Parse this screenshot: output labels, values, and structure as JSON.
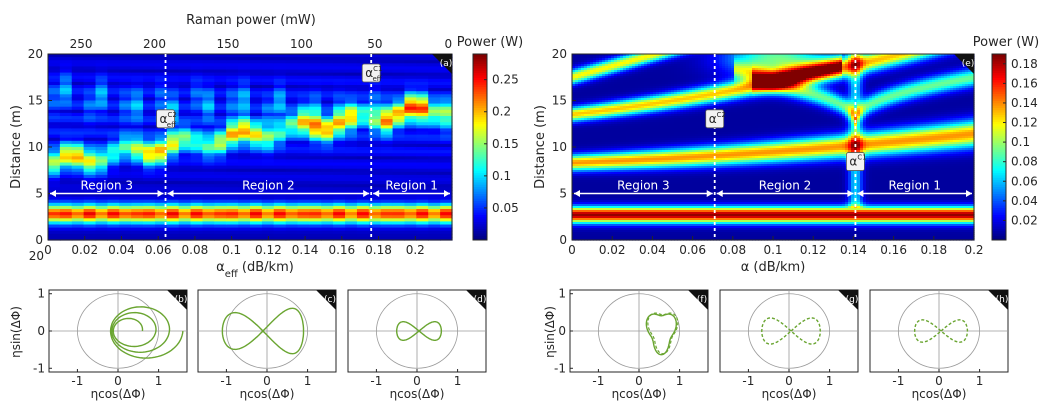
{
  "colors": {
    "axis": "#262626",
    "annot": "#ffffff",
    "polar_line": "#6aa531",
    "grid": "#9a9a9a"
  },
  "left_heatmap": {
    "top_axis_label": "Raman power (mW)",
    "top_ticks": [
      "250",
      "200",
      "150",
      "100",
      "50",
      "0"
    ],
    "ylabel": "Distance (m)",
    "xlabel_main": "α",
    "xlabel_sub": "eff",
    "xlabel_units": " (dB/km)",
    "colorbar_title": "Power (W)",
    "colorbar_ticks": [
      "0.25",
      "0.2",
      "0.15",
      "0.1",
      "0.05"
    ],
    "panel_label": "(a)",
    "critical_labels": [
      {
        "main": "α",
        "sup": "C2",
        "sub": "eff"
      },
      {
        "main": "α",
        "sup": "C1",
        "sub": "eff"
      }
    ],
    "region_labels": [
      "Region 3",
      "Region 2",
      "Region 1"
    ]
  },
  "right_heatmap": {
    "ylabel": "Distance (m)",
    "xlabel": "α (dB/km)",
    "colorbar_title": "Power (W)",
    "colorbar_ticks": [
      "0.18",
      "0.16",
      "0.14",
      "0.12",
      "0.1",
      "0.08",
      "0.06",
      "0.04",
      "0.02"
    ],
    "panel_label": "(e)",
    "critical_labels": [
      {
        "main": "α",
        "sup": "C2"
      },
      {
        "main": "α",
        "sup": "C1"
      }
    ],
    "region_labels": [
      "Region 3",
      "Region 2",
      "Region 1"
    ]
  },
  "polar_plots": {
    "ylabel": "ηsin(ΔΦ)",
    "xlabel": "ηcos(ΔΦ)",
    "xticks": [
      "-1",
      "0",
      "1"
    ],
    "yticks": [
      "1",
      "0",
      "-1"
    ],
    "panels": [
      "(b)",
      "(c)",
      "(d)",
      "(f)",
      "(g)",
      "(h)"
    ]
  },
  "chart_data": [
    {
      "type": "heatmap",
      "title": "",
      "xlabel": "αeff (dB/km)",
      "ylabel": "Distance (m)",
      "top_xlabel": "Raman power (mW)",
      "xlim": [
        0,
        0.22
      ],
      "ylim": [
        0,
        20
      ],
      "xticks": [
        0,
        0.02,
        0.04,
        0.06,
        0.08,
        0.1,
        0.12,
        0.14,
        0.16,
        0.18,
        0.2
      ],
      "yticks": [
        0,
        5,
        10,
        15,
        20
      ],
      "top_xticks": [
        250,
        200,
        150,
        100,
        50,
        0
      ],
      "colorbar_label": "Power (W)",
      "colorbar_range": [
        0,
        0.29
      ],
      "colormap": "jet",
      "critical_x": [
        0.064,
        0.176
      ],
      "regions": [
        {
          "name": "Region 3",
          "x": [
            0,
            0.064
          ]
        },
        {
          "name": "Region 2",
          "x": [
            0.064,
            0.176
          ]
        },
        {
          "name": "Region 1",
          "x": [
            0.176,
            0.22
          ]
        }
      ]
    },
    {
      "type": "heatmap",
      "title": "",
      "xlabel": "α (dB/km)",
      "ylabel": "Distance (m)",
      "xlim": [
        0,
        0.2
      ],
      "ylim": [
        0,
        20
      ],
      "xticks": [
        0,
        0.02,
        0.04,
        0.06,
        0.08,
        0.1,
        0.12,
        0.14,
        0.16,
        0.18,
        0.2
      ],
      "yticks": [
        0,
        5,
        10,
        15,
        20
      ],
      "colorbar_label": "Power (W)",
      "colorbar_range": [
        0,
        0.19
      ],
      "colormap": "jet",
      "critical_x": [
        0.071,
        0.141
      ],
      "regions": [
        {
          "name": "Region 3",
          "x": [
            0,
            0.071
          ]
        },
        {
          "name": "Region 2",
          "x": [
            0.071,
            0.141
          ]
        },
        {
          "name": "Region 1",
          "x": [
            0.141,
            0.2
          ]
        }
      ]
    },
    {
      "type": "scatter",
      "panel": "(b)",
      "xlim": [
        -1.7,
        1.7
      ],
      "ylim": [
        -1.1,
        1.1
      ],
      "style": "solid"
    },
    {
      "type": "scatter",
      "panel": "(c)",
      "xlim": [
        -1.7,
        1.7
      ],
      "ylim": [
        -1.1,
        1.1
      ],
      "style": "solid"
    },
    {
      "type": "scatter",
      "panel": "(d)",
      "xlim": [
        -1.7,
        1.7
      ],
      "ylim": [
        -1.1,
        1.1
      ],
      "style": "solid"
    },
    {
      "type": "scatter",
      "panel": "(f)",
      "xlim": [
        -1.7,
        1.7
      ],
      "ylim": [
        -1.1,
        1.1
      ],
      "style": "solid+dashed"
    },
    {
      "type": "scatter",
      "panel": "(g)",
      "xlim": [
        -1.7,
        1.7
      ],
      "ylim": [
        -1.1,
        1.1
      ],
      "style": "dashed"
    },
    {
      "type": "scatter",
      "panel": "(h)",
      "xlim": [
        -1.7,
        1.7
      ],
      "ylim": [
        -1.1,
        1.1
      ],
      "style": "dashed"
    }
  ]
}
